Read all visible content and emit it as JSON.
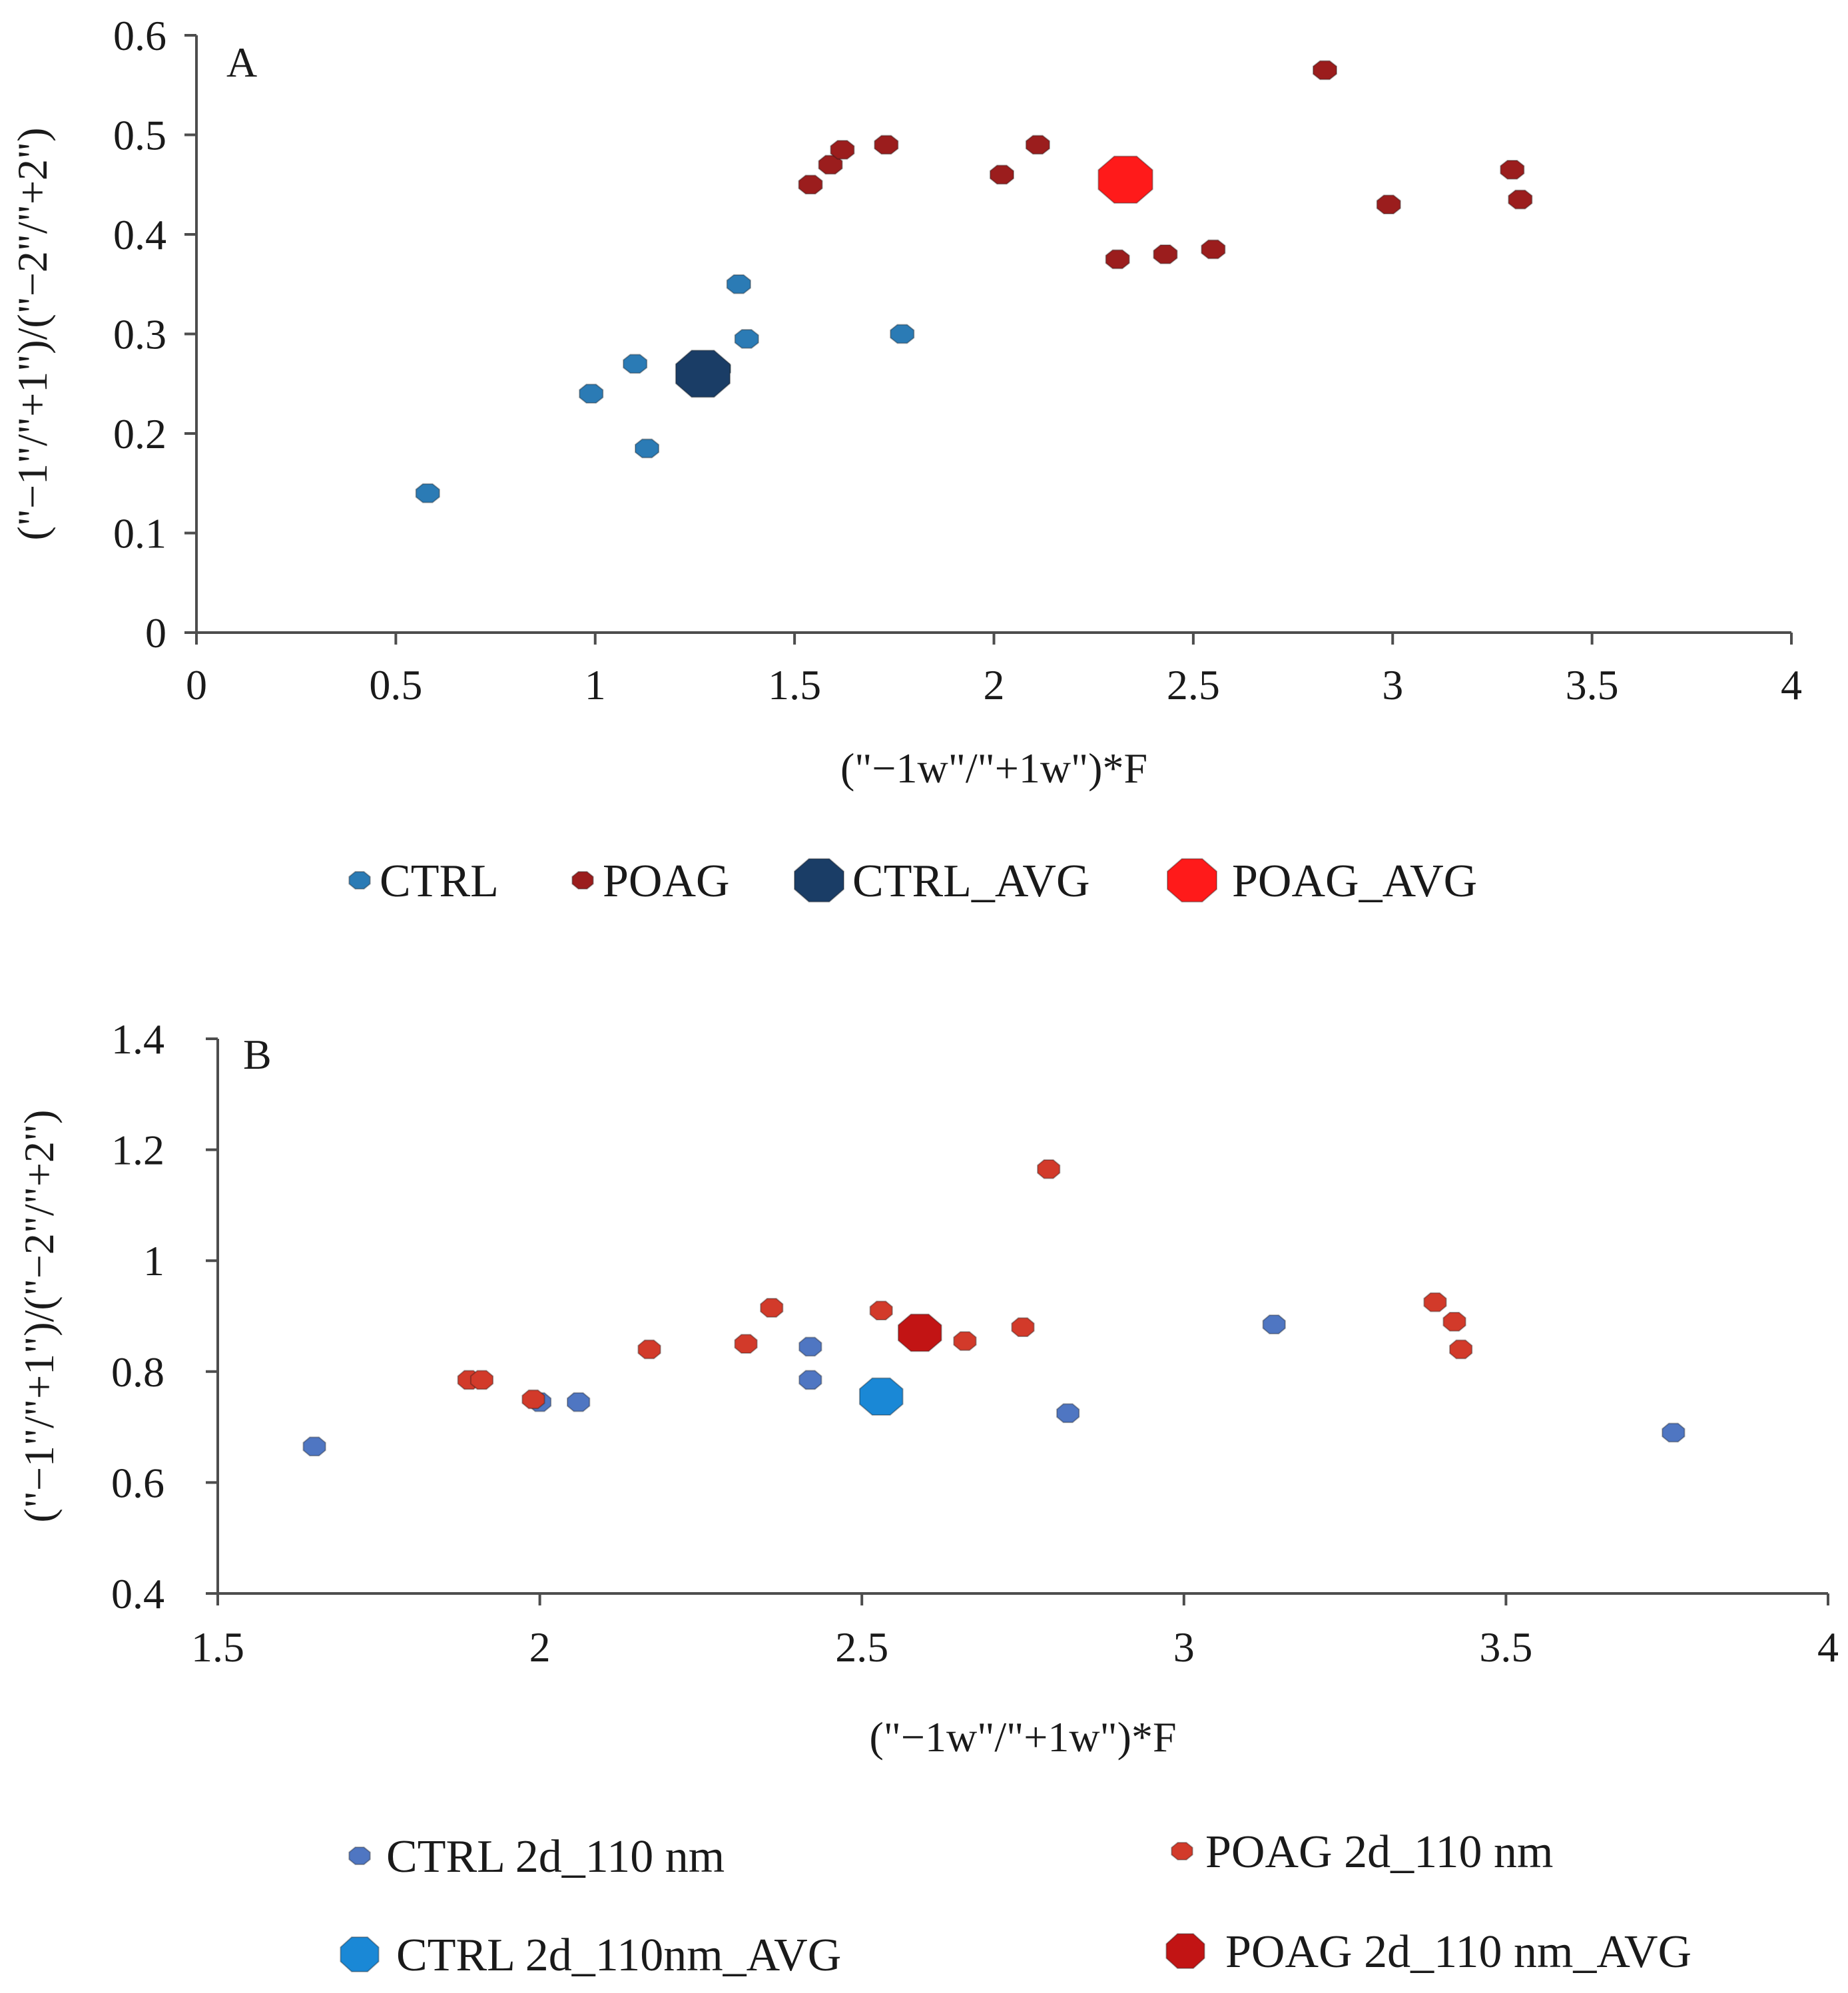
{
  "colors": {
    "ctrl": "#2b7bb5",
    "ctrl_avg": "#1a3d66",
    "poag": "#9b1d1d",
    "poag_avg": "#ff1a1a",
    "ctrl_b": "#4f76c2",
    "ctrl_avg_b": "#1a88d6",
    "poag_b": "#d23a2a",
    "poag_avg_b": "#c21414"
  },
  "chart_data": [
    {
      "type": "scatter",
      "panel_label": "A",
      "xlabel": "(\"−1w\"/\"+1w\")*F",
      "ylabel": "(\"−1\"/\"+1\")/(\"−2\"/\"+2\")",
      "xlim": [
        0,
        4
      ],
      "ylim": [
        0,
        0.6
      ],
      "x_ticks": [
        "0",
        "0.5",
        "1",
        "1.5",
        "2",
        "2.5",
        "3",
        "3.5",
        "4"
      ],
      "y_ticks": [
        "0",
        "0.1",
        "0.2",
        "0.3",
        "0.4",
        "0.5",
        "0.6"
      ],
      "legend_position": "bottom",
      "series": [
        {
          "name": "CTRL",
          "color_key": "ctrl",
          "marker": "small",
          "points": [
            [
              0.58,
              0.14
            ],
            [
              0.99,
              0.24
            ],
            [
              1.1,
              0.27
            ],
            [
              1.13,
              0.185
            ],
            [
              1.31,
              0.265
            ],
            [
              1.36,
              0.35
            ],
            [
              1.38,
              0.295
            ],
            [
              1.77,
              0.3
            ]
          ]
        },
        {
          "name": "POAG",
          "color_key": "poag",
          "marker": "small",
          "points": [
            [
              1.54,
              0.45
            ],
            [
              1.59,
              0.47
            ],
            [
              1.62,
              0.485
            ],
            [
              1.73,
              0.49
            ],
            [
              2.02,
              0.46
            ],
            [
              2.11,
              0.49
            ],
            [
              2.31,
              0.375
            ],
            [
              2.43,
              0.38
            ],
            [
              2.55,
              0.385
            ],
            [
              2.83,
              0.565
            ],
            [
              2.99,
              0.43
            ],
            [
              3.3,
              0.465
            ],
            [
              3.32,
              0.435
            ]
          ]
        },
        {
          "name": "CTRL_AVG",
          "color_key": "ctrl_avg",
          "marker": "large",
          "points": [
            [
              1.27,
              0.26
            ]
          ]
        },
        {
          "name": "POAG_AVG",
          "color_key": "poag_avg",
          "marker": "large",
          "points": [
            [
              2.33,
              0.455
            ]
          ]
        }
      ]
    },
    {
      "type": "scatter",
      "panel_label": "B",
      "xlabel": "(\"−1w\"/\"+1w\")*F",
      "ylabel": "(\"−1\"/\"+1\")/(\"−2\"/\"+2\")",
      "xlim": [
        1.5,
        4
      ],
      "ylim": [
        0.4,
        1.4
      ],
      "x_ticks": [
        "1.5",
        "2",
        "2.5",
        "3",
        "3.5",
        "4"
      ],
      "y_ticks": [
        "0.4",
        "0.6",
        "0.8",
        "1",
        "1.2",
        "1.4"
      ],
      "legend_position": "bottom",
      "series": [
        {
          "name": "CTRL 2d_110 nm",
          "color_key": "ctrl_b",
          "marker": "small",
          "points": [
            [
              1.65,
              0.665
            ],
            [
              2.0,
              0.745
            ],
            [
              2.06,
              0.745
            ],
            [
              2.42,
              0.785
            ],
            [
              2.42,
              0.845
            ],
            [
              2.82,
              0.725
            ],
            [
              3.14,
              0.885
            ],
            [
              3.76,
              0.69
            ]
          ]
        },
        {
          "name": "POAG 2d_110 nm",
          "color_key": "poag_b",
          "marker": "small",
          "points": [
            [
              1.89,
              0.785
            ],
            [
              1.91,
              0.785
            ],
            [
              1.99,
              0.75
            ],
            [
              2.17,
              0.84
            ],
            [
              2.32,
              0.85
            ],
            [
              2.36,
              0.915
            ],
            [
              2.53,
              0.91
            ],
            [
              2.66,
              0.855
            ],
            [
              2.75,
              0.88
            ],
            [
              2.79,
              1.165
            ],
            [
              3.39,
              0.925
            ],
            [
              3.42,
              0.89
            ],
            [
              3.43,
              0.84
            ]
          ]
        },
        {
          "name": "CTRL 2d_110nm_AVG",
          "color_key": "ctrl_avg_b",
          "marker": "large",
          "points": [
            [
              2.53,
              0.755
            ]
          ]
        },
        {
          "name": "POAG 2d_110 nm_AVG",
          "color_key": "poag_avg_b",
          "marker": "large",
          "points": [
            [
              2.59,
              0.87
            ]
          ]
        }
      ]
    }
  ]
}
